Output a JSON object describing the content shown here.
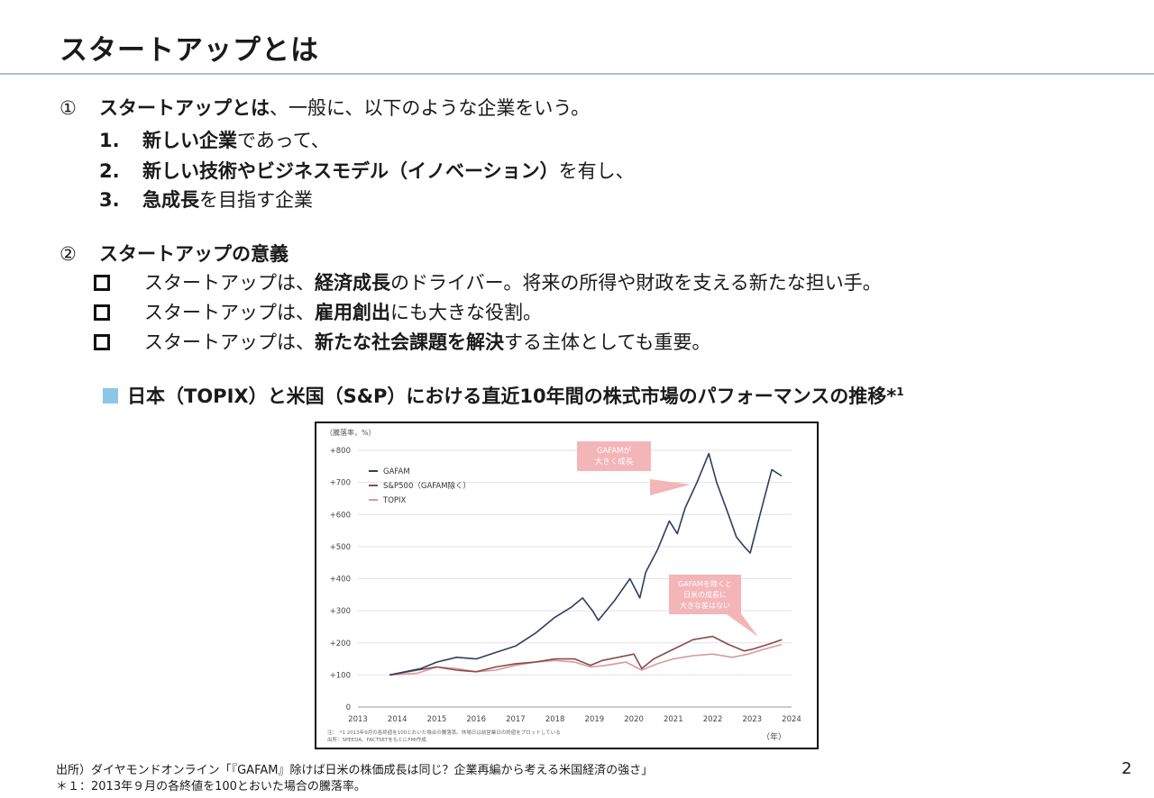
{
  "title": "スタートアップとは",
  "section1": {
    "marker": "①",
    "lead_bold": "スタートアップとは",
    "lead_rest": "、一般に、以下のような企業をいう。",
    "items": [
      {
        "num": "1.",
        "bold": "新しい企業",
        "rest": "であって、"
      },
      {
        "num": "2.",
        "bold": "新しい技術やビジネスモデル（イノベーション）",
        "rest": "を有し、"
      },
      {
        "num": "3.",
        "bold": "急成長",
        "rest": "を目指す企業"
      }
    ]
  },
  "section2": {
    "marker": "②",
    "heading": "スタートアップの意義",
    "bullets": [
      {
        "pre": "スタートアップは、",
        "bold": "経済成長",
        "rest": "のドライバー。将来の所得や財政を支える新たな担い手。"
      },
      {
        "pre": "スタートアップは、",
        "bold": "雇用創出",
        "rest": "にも大きな役割。"
      },
      {
        "pre": "スタートアップは、",
        "bold": "新たな社会課題を解決",
        "rest": "する主体としても重要。"
      }
    ]
  },
  "chart_heading": {
    "text": "日本（TOPIX）と米国（S&P）における直近10年間の株式市場のパフォーマンスの推移*",
    "sup": "1",
    "marker_color": "#8ec6e8"
  },
  "chart_data": {
    "type": "line",
    "ylabel": "（騰落率，%）",
    "xlabel": "（年）",
    "ylim": [
      0,
      800
    ],
    "yticks": [
      "0",
      "+100",
      "+200",
      "+300",
      "+400",
      "+500",
      "+600",
      "+700",
      "+800"
    ],
    "xticks": [
      "2013",
      "2014",
      "2015",
      "2016",
      "2017",
      "2018",
      "2019",
      "2020",
      "2021",
      "2022",
      "2023",
      "2024"
    ],
    "series": [
      {
        "name": "GAFAM",
        "color": "#2c3e63",
        "x": [
          2013.8,
          2014.2,
          2014.6,
          2015.0,
          2015.5,
          2016.0,
          2016.5,
          2017.0,
          2017.5,
          2018.0,
          2018.4,
          2018.7,
          2018.95,
          2019.1,
          2019.5,
          2019.9,
          2020.15,
          2020.3,
          2020.6,
          2020.9,
          2021.1,
          2021.3,
          2021.6,
          2021.9,
          2022.1,
          2022.4,
          2022.6,
          2022.8,
          2022.95,
          2023.2,
          2023.5,
          2023.75
        ],
        "y": [
          100,
          110,
          120,
          140,
          155,
          150,
          170,
          190,
          230,
          280,
          310,
          340,
          300,
          270,
          330,
          400,
          340,
          420,
          490,
          580,
          540,
          620,
          700,
          790,
          700,
          600,
          530,
          500,
          480,
          600,
          740,
          720
        ]
      },
      {
        "name": "S&P500（GAFAM除く）",
        "color": "#8c4a4a",
        "x": [
          2013.8,
          2014.5,
          2015.0,
          2015.5,
          2016.0,
          2016.5,
          2017.0,
          2017.5,
          2018.0,
          2018.5,
          2018.9,
          2019.2,
          2019.6,
          2020.0,
          2020.2,
          2020.5,
          2021.0,
          2021.5,
          2022.0,
          2022.4,
          2022.8,
          2023.0,
          2023.4,
          2023.75
        ],
        "y": [
          100,
          115,
          125,
          115,
          110,
          125,
          135,
          140,
          150,
          150,
          130,
          145,
          155,
          165,
          120,
          150,
          180,
          210,
          220,
          195,
          175,
          180,
          195,
          210
        ]
      },
      {
        "name": "TOPIX",
        "color": "#d99a9a",
        "x": [
          2013.8,
          2014.5,
          2015.0,
          2015.5,
          2016.0,
          2016.5,
          2017.0,
          2017.5,
          2018.0,
          2018.5,
          2018.9,
          2019.3,
          2019.8,
          2020.2,
          2020.6,
          2021.0,
          2021.5,
          2022.0,
          2022.5,
          2022.9,
          2023.3,
          2023.75
        ],
        "y": [
          100,
          105,
          125,
          120,
          110,
          115,
          130,
          140,
          145,
          140,
          125,
          130,
          140,
          115,
          135,
          150,
          160,
          165,
          155,
          165,
          180,
          195
        ]
      }
    ],
    "annotations": [
      {
        "text": [
          "GAFAMが",
          "大きく成長"
        ]
      },
      {
        "text": [
          "GAFAMを除くと",
          "日米の成長に",
          "大きな差はない"
        ]
      }
    ],
    "notes": [
      "注：　*1 2013年9月の各終値を100とおいた場合の騰落率。休場日は前営業日の終値をプロットしている",
      "出所：SPEEDA、FACTSETをもとにFMI作成"
    ],
    "annotation_color": "#f3b5b8",
    "grid": true,
    "legend": "top-left"
  },
  "source_line": "出所）ダイヤモンドオンライン「『GAFAM』除けば日米の株価成長は同じ？企業再編から考える米国経済の強さ」",
  "footnote_line": "＊１：2013年９月の各終値を100とおいた場合の騰落率。",
  "page_number": "2"
}
